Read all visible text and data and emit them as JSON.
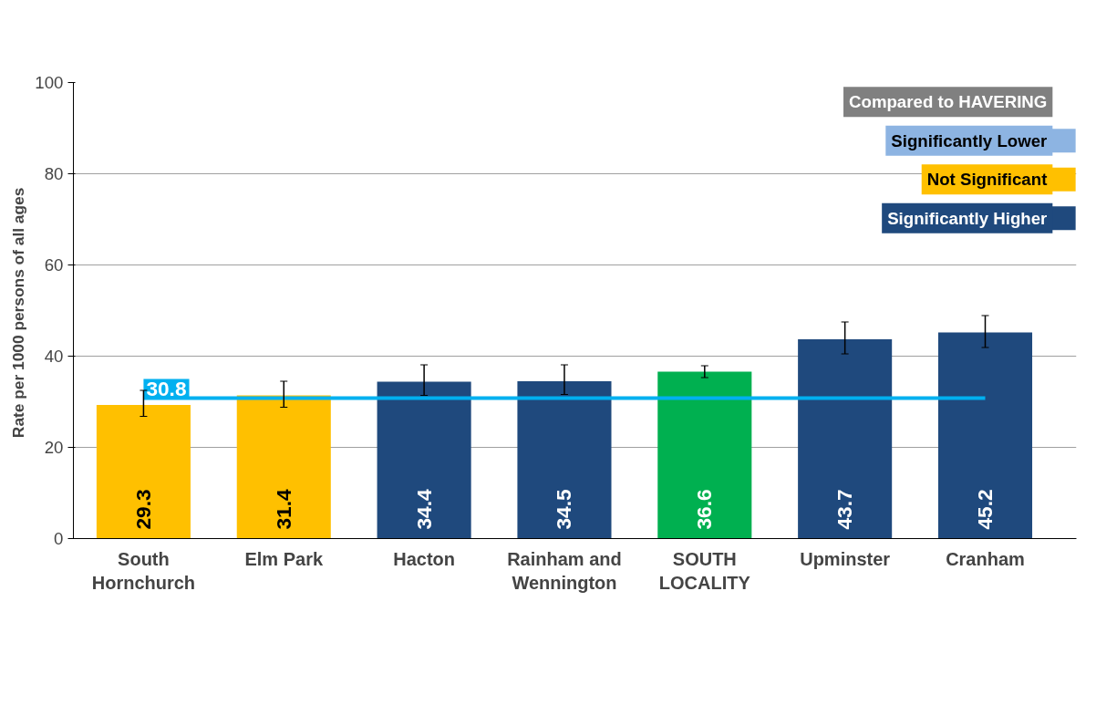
{
  "chart_data": {
    "type": "bar",
    "ylabel": "Rate per 1000 persons  of all ages",
    "legend_title": "Compared to HAVERING",
    "categories": [
      "South Hornchurch",
      "Elm Park",
      "Hacton",
      "Rainham and Wennington",
      "SOUTH LOCALITY",
      "Upminster",
      "Cranham"
    ],
    "series": [
      {
        "name": "Significantly Lower",
        "color": "#8db4e2",
        "values": [
          null,
          null,
          null,
          null,
          null,
          null,
          null
        ]
      },
      {
        "name": "Not Significant",
        "color": "#ffc000",
        "values": [
          29.3,
          31.4,
          null,
          null,
          null,
          null,
          null
        ],
        "errors": [
          [
            26.8,
            32.5
          ],
          [
            28.8,
            34.5
          ],
          null,
          null,
          null,
          null,
          null
        ]
      },
      {
        "name": "Significantly Higher",
        "color": "#1f497d",
        "values": [
          null,
          null,
          34.4,
          34.5,
          null,
          43.7,
          45.2
        ],
        "errors": [
          null,
          null,
          [
            31.4,
            38.1
          ],
          [
            31.6,
            38.1
          ],
          null,
          [
            40.5,
            47.5
          ],
          [
            41.9,
            48.9
          ]
        ]
      },
      {
        "color": "#00b050",
        "values": [
          null,
          null,
          null,
          null,
          36.6,
          null,
          null
        ],
        "errors": [
          null,
          null,
          null,
          null,
          [
            35.3,
            37.9
          ],
          null,
          null
        ]
      }
    ],
    "ylim": [
      0,
      100
    ],
    "yticks": [
      0,
      20,
      40,
      60,
      80,
      100
    ],
    "grid": "y",
    "legend": "top right",
    "data_labels": true,
    "ref_lines": [
      {
        "axis": "y",
        "value": 30.8,
        "label": "30.8",
        "color": "#00b0f0"
      }
    ]
  }
}
